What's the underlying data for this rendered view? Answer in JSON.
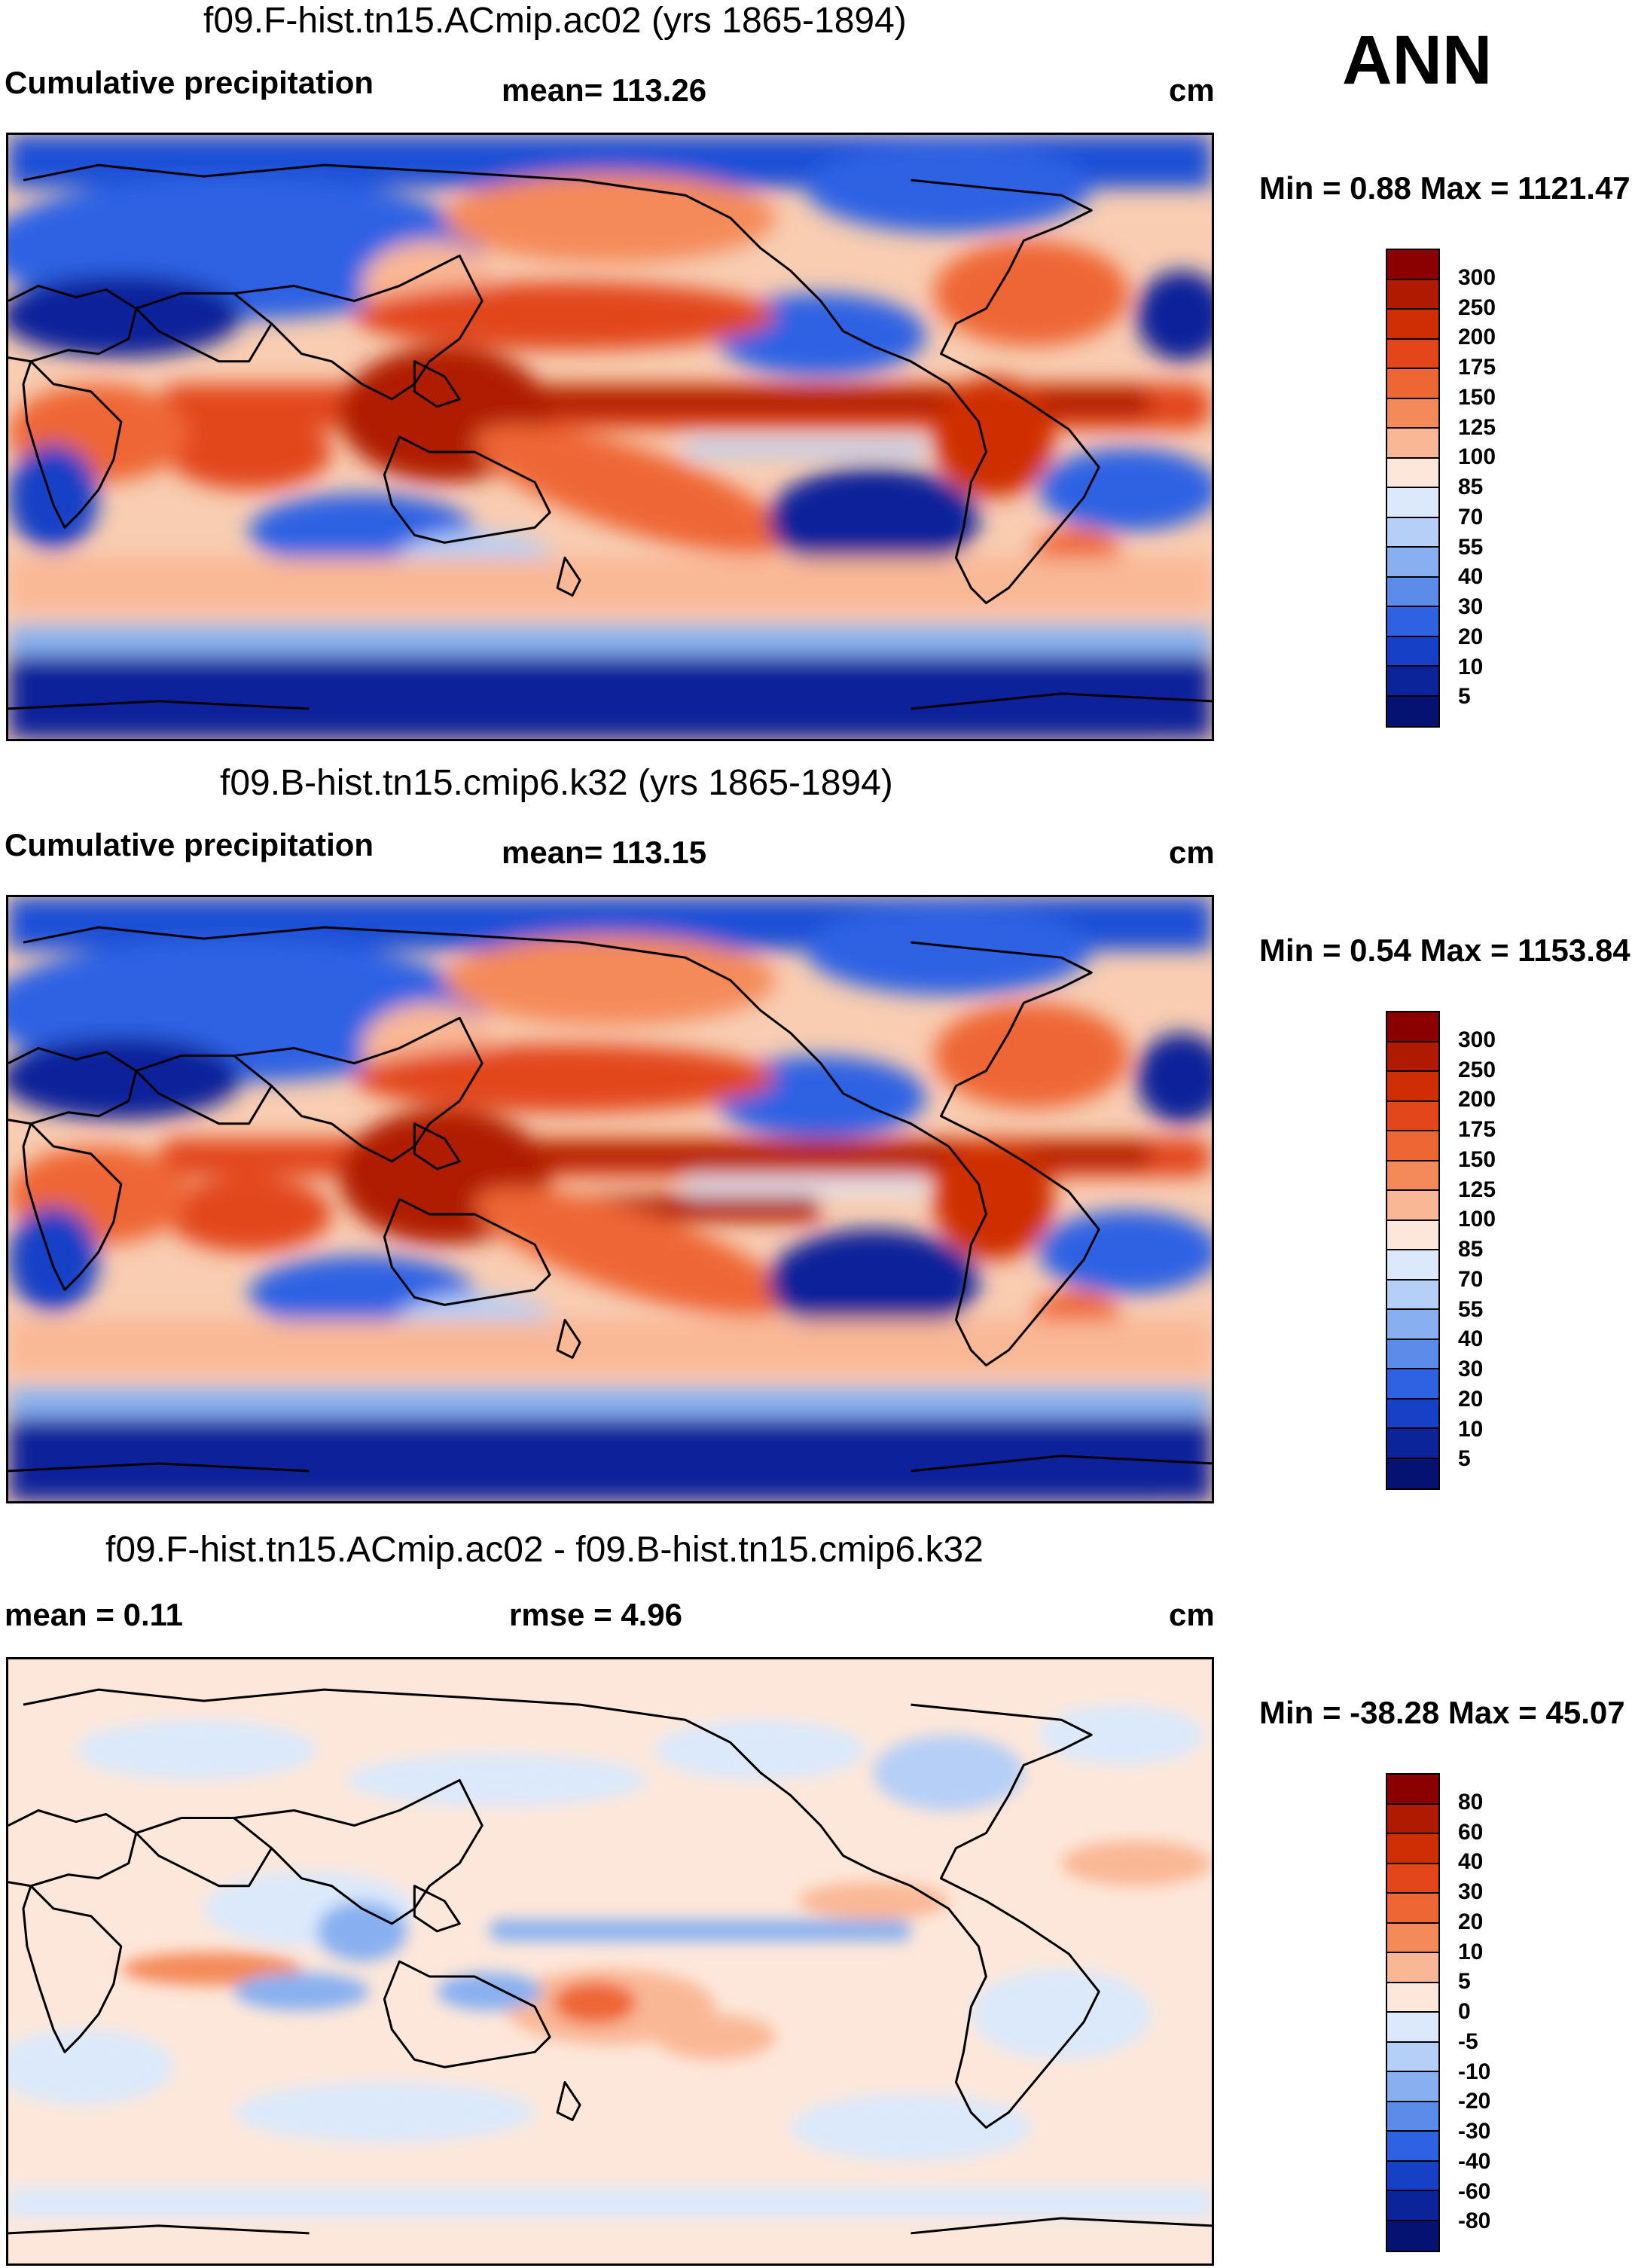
{
  "season": "ANN",
  "panels": [
    {
      "id": "ac02",
      "title": "f09.F-hist.tn15.ACmip.ac02 (yrs 1865-1894)",
      "left_label": "Cumulative precipitation",
      "center_label": "mean= 113.26",
      "units": "cm",
      "minmax": "Min =   0.88 Max = 1121.47"
    },
    {
      "id": "k32",
      "title": "f09.B-hist.tn15.cmip6.k32 (yrs 1865-1894)",
      "left_label": "Cumulative precipitation",
      "center_label": "mean= 113.15",
      "units": "cm",
      "minmax": "Min =   0.54 Max = 1153.84"
    },
    {
      "id": "diff",
      "title": "f09.F-hist.tn15.ACmip.ac02 - f09.B-hist.tn15.cmip6.k32",
      "left_label": "mean =   0.11",
      "center_label": "rmse =    4.96",
      "units": "cm",
      "minmax": "Min = -38.28 Max =  45.07"
    }
  ],
  "colorbars": {
    "precip": {
      "levels": [
        "300",
        "250",
        "200",
        "175",
        "150",
        "125",
        "100",
        "85",
        "70",
        "55",
        "40",
        "30",
        "20",
        "10",
        "5"
      ],
      "colors": [
        "#8b0000",
        "#b01a00",
        "#cf2e05",
        "#e2461a",
        "#ee6634",
        "#f48a5a",
        "#f9b795",
        "#fde7da",
        "#dbe9fb",
        "#b5cff7",
        "#88b0f0",
        "#5b8cea",
        "#2f62e3",
        "#1640c6",
        "#0b249a",
        "#051272"
      ]
    },
    "diff": {
      "levels": [
        "80",
        "60",
        "40",
        "30",
        "20",
        "10",
        "5",
        "0",
        "-5",
        "-10",
        "-20",
        "-30",
        "-40",
        "-60",
        "-80"
      ],
      "colors": [
        "#8b0000",
        "#b01a00",
        "#cf2e05",
        "#e2461a",
        "#ee6634",
        "#f48a5a",
        "#f9b795",
        "#fde7da",
        "#dbe9fb",
        "#b5cff7",
        "#88b0f0",
        "#5b8cea",
        "#2f62e3",
        "#1640c6",
        "#0b249a",
        "#051272"
      ]
    }
  }
}
